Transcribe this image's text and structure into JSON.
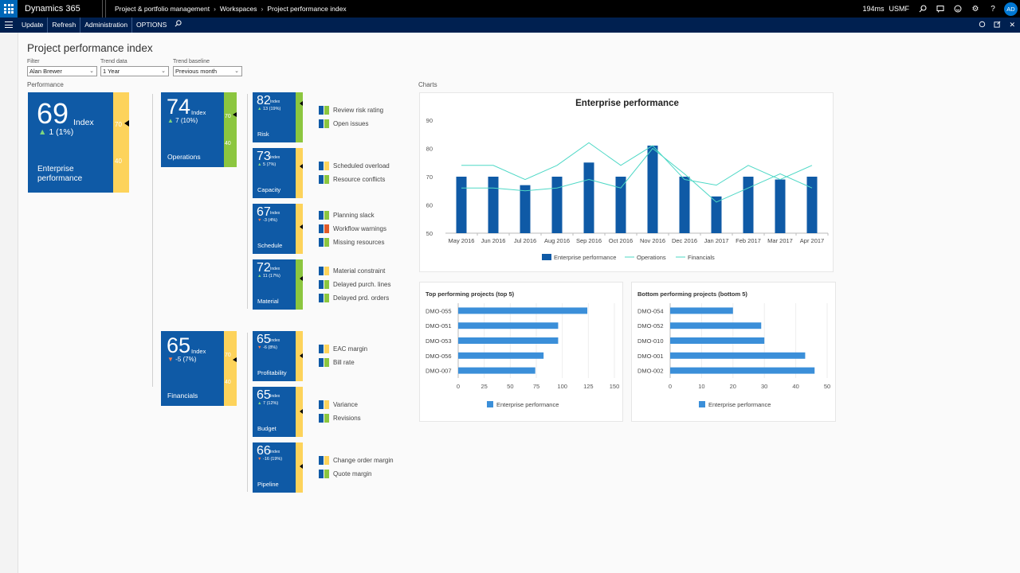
{
  "app": {
    "name": "Dynamics 365",
    "breadcrumbs": [
      "Project & portfolio management",
      "Workspaces",
      "Project performance index"
    ],
    "perf_time": "194ms",
    "company": "USMF",
    "user_initials": "AD"
  },
  "actionbar": {
    "items": [
      "Update",
      "Refresh",
      "Administration",
      "OPTIONS"
    ]
  },
  "page": {
    "title": "Project performance index",
    "filters": [
      {
        "label": "Filter",
        "value": "Alan Brewer"
      },
      {
        "label": "Trend data",
        "value": "1 Year"
      },
      {
        "label": "Trend baseline",
        "value": "Previous month"
      }
    ],
    "performance_label": "Performance",
    "charts_label": "Charts"
  },
  "tiles": {
    "enterprise": {
      "value": "69",
      "index": "Index",
      "delta": "1 (1%)",
      "name1": "Enterprise",
      "name2": "performance",
      "g_hi": "70",
      "g_lo": "40",
      "level": 69
    },
    "operations": {
      "value": "74",
      "index": "Index",
      "delta": "7 (10%)",
      "name": "Operations",
      "g_hi": "70",
      "g_lo": "40",
      "level": 74
    },
    "financials": {
      "value": "65",
      "index": "Index",
      "delta": "-5 (7%)",
      "name": "Financials",
      "g_hi": "70",
      "g_lo": "40",
      "level": 65
    },
    "risk": {
      "value": "82",
      "index": "Index",
      "delta": "13 (19%)",
      "name": "Risk",
      "level": 82
    },
    "capacity": {
      "value": "73",
      "index": "Index",
      "delta": "5 (7%)",
      "name": "Capacity",
      "level": 73
    },
    "schedule": {
      "value": "67",
      "index": "Index",
      "delta": "-3 (4%)",
      "name": "Schedule",
      "level": 67
    },
    "material": {
      "value": "72",
      "index": "Index",
      "delta": "11 (17%)",
      "name": "Material",
      "level": 72
    },
    "profitability": {
      "value": "65",
      "index": "Index",
      "delta": "-6 (8%)",
      "name": "Profitability",
      "level": 65
    },
    "budget": {
      "value": "65",
      "index": "Index",
      "delta": "7 (12%)",
      "name": "Budget",
      "level": 65
    },
    "pipeline": {
      "value": "66",
      "index": "Index",
      "delta": "-16 (19%)",
      "name": "Pipeline",
      "level": 66
    }
  },
  "kpis": {
    "risk": [
      "Review risk rating",
      "Open issues"
    ],
    "capacity": [
      "Scheduled overload",
      "Resource conflicts"
    ],
    "schedule": [
      "Planning slack",
      "Workflow warnings",
      "Missing resources"
    ],
    "material": [
      "Material constraint",
      "Delayed purch. lines",
      "Delayed prd. orders"
    ],
    "profitability": [
      "EAC margin",
      "Bill rate"
    ],
    "budget": [
      "Variance",
      "Revisions"
    ],
    "pipeline": [
      "Change order margin",
      "Quote margin"
    ]
  },
  "colors": {
    "tile": "#0f5aa6",
    "yellow": "#fdd35b",
    "green": "#8cc63f",
    "red": "#e05b2b",
    "line": "#4ed8c6",
    "bar": "#0f5aa6",
    "hbar": "#3b8fd9"
  },
  "chart_data": [
    {
      "type": "bar",
      "title": "Enterprise performance",
      "categories": [
        "May 2016",
        "Jun 2016",
        "Jul 2016",
        "Aug 2016",
        "Sep 2016",
        "Oct 2016",
        "Nov 2016",
        "Dec 2016",
        "Jan 2017",
        "Feb 2017",
        "Mar 2017",
        "Apr 2017"
      ],
      "series": [
        {
          "name": "Enterprise performance",
          "kind": "bar",
          "values": [
            70,
            70,
            67,
            70,
            75,
            70,
            81,
            70,
            63,
            70,
            69,
            70
          ]
        },
        {
          "name": "Operations",
          "kind": "line",
          "values": [
            66,
            66,
            65,
            66,
            69,
            66,
            80,
            71,
            61,
            66,
            71,
            66
          ]
        },
        {
          "name": "Financials",
          "kind": "line",
          "values": [
            74,
            74,
            69,
            74,
            82,
            74,
            81,
            69,
            67,
            74,
            69,
            74
          ]
        }
      ],
      "yticks": [
        50,
        60,
        70,
        80,
        90
      ],
      "ylim": [
        50,
        90
      ]
    },
    {
      "type": "bar",
      "title": "Top performing projects (top 5)",
      "categories": [
        "DMO-055",
        "DMO-051",
        "DMO-053",
        "DMO-056",
        "DMO-007"
      ],
      "series": [
        {
          "name": "Enterprise performance",
          "values": [
            124,
            96,
            96,
            82,
            74
          ]
        }
      ],
      "xticks": [
        0,
        25,
        50,
        75,
        100,
        125,
        150
      ],
      "xlim": [
        0,
        150
      ]
    },
    {
      "type": "bar",
      "title": "Bottom performing projects (bottom 5)",
      "categories": [
        "DMO-054",
        "DMO-052",
        "DMO-010",
        "DMO-001",
        "DMO-002"
      ],
      "series": [
        {
          "name": "Enterprise performance",
          "values": [
            20,
            29,
            30,
            43,
            46
          ]
        }
      ],
      "xticks": [
        0,
        10,
        20,
        30,
        40,
        50
      ],
      "xlim": [
        0,
        50
      ]
    }
  ]
}
